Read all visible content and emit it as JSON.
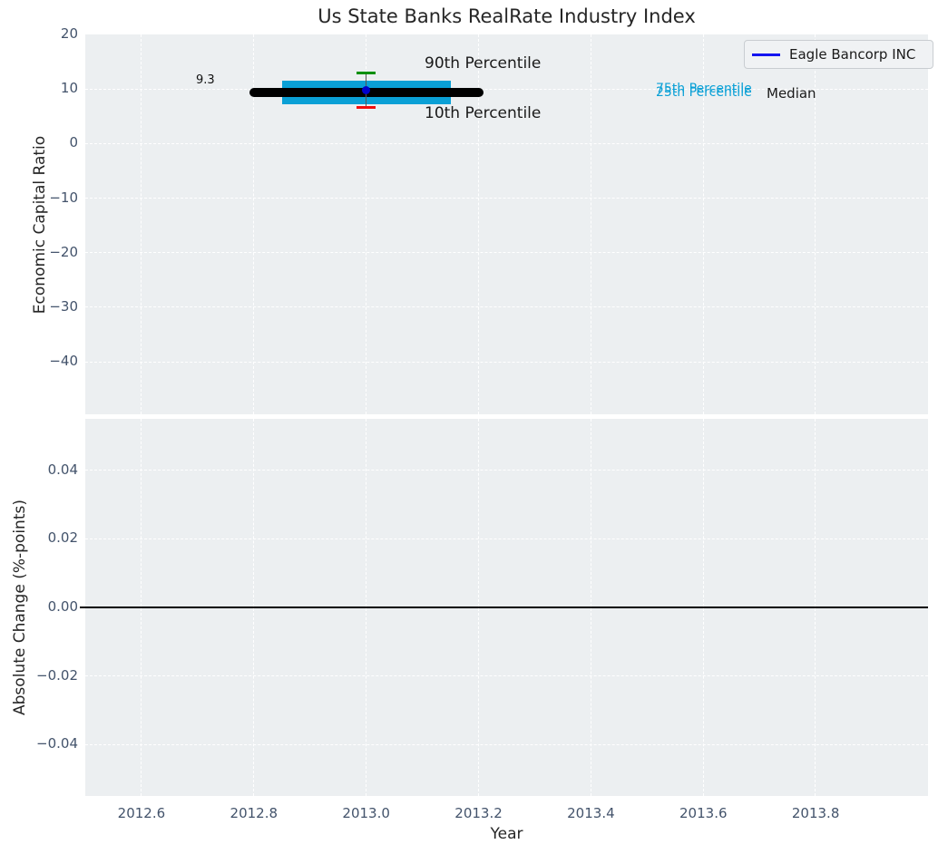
{
  "title": "Us State Banks RealRate Industry Index",
  "legend": {
    "label": "Eagle Bancorp INC",
    "line_color": "#1414f0"
  },
  "colors": {
    "plot_bg": "#eceff1",
    "grid": "#ffffff",
    "tick": "#43536b",
    "title": "#262626",
    "percentile_box": "#0aa0d6",
    "p90_cap": "#008f00",
    "p10_cap": "#f20d0d",
    "median": "#000000",
    "company_marker": "#0000cc",
    "err_line": "#555555"
  },
  "chart_data": [
    {
      "type": "scatter",
      "title": "Us State Banks RealRate Industry Index",
      "ylabel": "Economic Capital Ratio",
      "xlim": [
        2012.5,
        2014.0
      ],
      "ylim": [
        -49.6,
        20
      ],
      "grid": true,
      "yticks": {
        "values": [
          20,
          10,
          0,
          -10,
          -20,
          -30,
          -40
        ],
        "labels": [
          "20",
          "10",
          "0",
          "−10",
          "−20",
          "−30",
          "−40"
        ]
      },
      "xticks": {
        "values": [
          2012.6,
          2012.8,
          2013.0,
          2013.2,
          2013.4,
          2013.6,
          2013.8
        ],
        "labels": [
          "2012.6",
          "2012.8",
          "2013.0",
          "2013.2",
          "2013.4",
          "2013.6",
          "2013.8"
        ]
      },
      "series": {
        "year": 2013.0,
        "company": {
          "name": "Eagle Bancorp INC",
          "value": 9.8
        },
        "median": {
          "value": 9.3,
          "x_start": 2012.8,
          "x_end": 2013.2,
          "value_label": "9.3"
        },
        "p75": 11.5,
        "p25": 7.2,
        "box_x_start": 2012.85,
        "box_x_end": 2013.15,
        "p90": 13.0,
        "p10": 6.7,
        "cap_halfwidth_years": 0.017
      },
      "annotations": {
        "p90_label": "90th Percentile",
        "p10_label": "10th Percentile",
        "p75_label": "75th Percentile",
        "p25_label": "25th Percentile",
        "median_label": "Median",
        "median_value_label": "9.3"
      },
      "legend_position": "upper right"
    },
    {
      "type": "line",
      "ylabel": "Absolute Change (%-points)",
      "xlabel": "Year",
      "xlim": [
        2012.5,
        2014.0
      ],
      "ylim": [
        -0.055,
        0.055
      ],
      "grid": true,
      "yticks": {
        "values": [
          0.04,
          0.02,
          0.0,
          -0.02,
          -0.04
        ],
        "labels": [
          "0.04",
          "0.02",
          "0.00",
          "−0.02",
          "−0.04"
        ]
      },
      "xticks": {
        "values": [
          2012.6,
          2012.8,
          2013.0,
          2013.2,
          2013.4,
          2013.6,
          2013.8
        ],
        "labels": [
          "2012.6",
          "2012.8",
          "2013.0",
          "2013.2",
          "2013.4",
          "2013.6",
          "2013.8"
        ]
      },
      "zero_line": 0.0,
      "series": []
    }
  ]
}
